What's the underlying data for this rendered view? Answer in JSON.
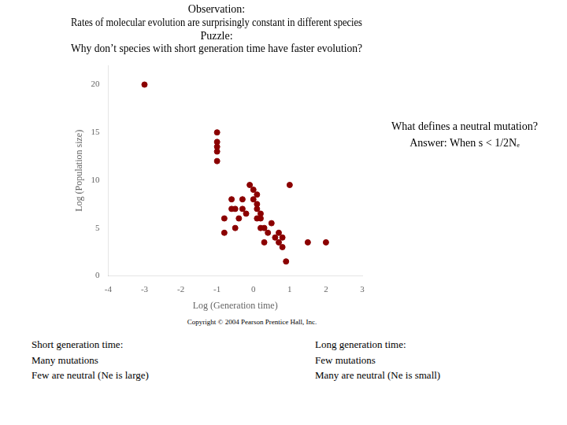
{
  "chart_data": {
    "type": "scatter",
    "title": [
      "Observation:",
      "Rates of molecular evolution are surprisingly constant in different species",
      "Puzzle:",
      "Why don’t species with short generation time have faster evolution?"
    ],
    "x": [
      -3,
      -1,
      -1,
      -1,
      -1,
      -1,
      -0.8,
      -0.8,
      -0.6,
      -0.6,
      -0.5,
      -0.5,
      -0.4,
      -0.3,
      -0.3,
      -0.2,
      -0.1,
      0.0,
      0.0,
      0.1,
      0.1,
      0.1,
      0.1,
      0.2,
      0.2,
      0.2,
      0.3,
      0.3,
      0.4,
      0.5,
      0.6,
      0.7,
      0.7,
      0.8,
      0.8,
      0.9,
      1.0,
      1.5,
      2.0
    ],
    "values": [
      20,
      15,
      14,
      13.5,
      13,
      12,
      4.5,
      6,
      7,
      8,
      7,
      5,
      6,
      8,
      7,
      6.5,
      9.5,
      9,
      8,
      8.5,
      7.5,
      7,
      6,
      6.5,
      6,
      5,
      5,
      3.5,
      4.5,
      5.5,
      4,
      4.5,
      3.5,
      3,
      4,
      1.5,
      9.5,
      3.5,
      3.5
    ],
    "color": "#8B0000",
    "xlabel": "Log (Generation time)",
    "ylabel": "Log (Population size)",
    "xlim": [
      -4,
      3
    ],
    "ylim": [
      0,
      22
    ],
    "xticks": [
      -4,
      -3,
      -2,
      -1,
      0,
      1,
      2,
      3
    ],
    "yticks": [
      0,
      5,
      10,
      15,
      20
    ],
    "grid": false,
    "annotations": [
      [
        "What defines a neutral mutation?",
        "Answer: When s < 1/2Nₑ"
      ],
      [
        "Short generation time:",
        "Many mutations",
        "Few are neutral (Ne is large)"
      ],
      [
        "Long generation time:",
        "Few mutations",
        "Many are neutral (Ne is small)"
      ]
    ],
    "note": "Copyright © 2004 Pearson Prentice Hall, Inc."
  }
}
